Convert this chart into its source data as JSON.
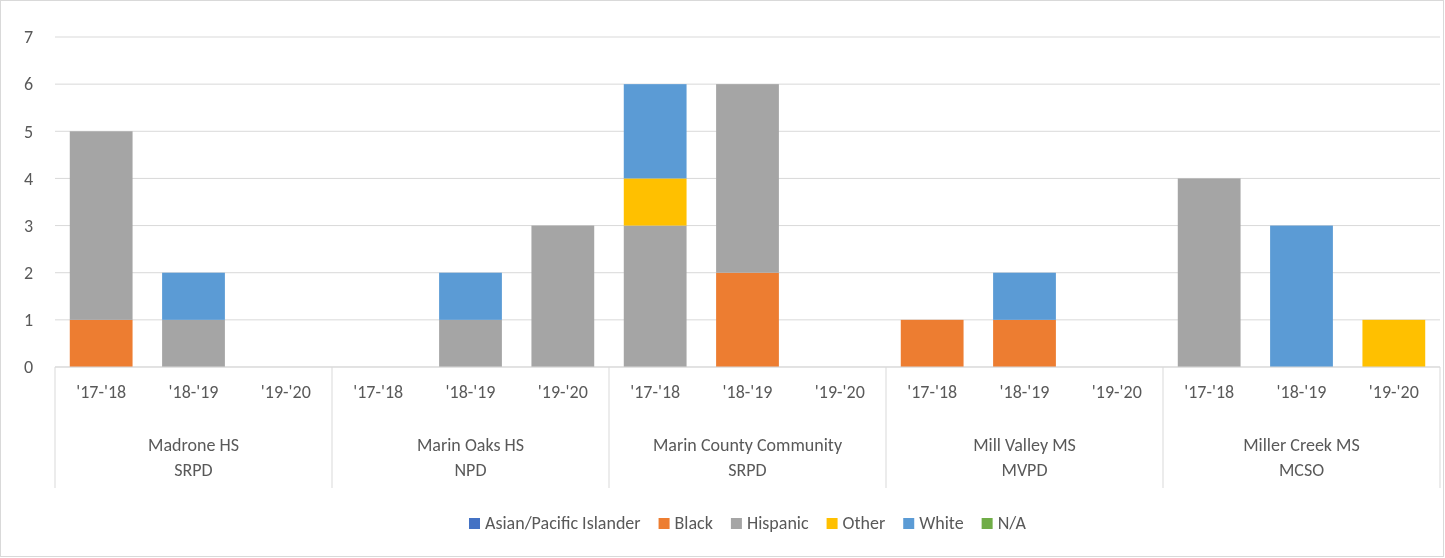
{
  "chart_data": {
    "type": "bar",
    "stacked": true,
    "categories": [
      "'17-'18",
      "'18-'19",
      "'19-'20",
      "'17-'18",
      "'18-'19",
      "'19-'20",
      "'17-'18",
      "'18-'19",
      "'19-'20",
      "'17-'18",
      "'18-'19",
      "'19-'20",
      "'17-'18",
      "'18-'19",
      "'19-'20"
    ],
    "series": [
      {
        "name": "Asian/Pacific Islander",
        "color": "#4472c4",
        "values": [
          0,
          0,
          0,
          0,
          0,
          0,
          0,
          0,
          0,
          0,
          0,
          0,
          0,
          0,
          0
        ]
      },
      {
        "name": "Black",
        "color": "#ed7d31",
        "values": [
          1,
          0,
          0,
          0,
          0,
          0,
          0,
          2,
          0,
          1,
          1,
          0,
          0,
          0,
          0
        ]
      },
      {
        "name": "Hispanic",
        "color": "#a5a5a5",
        "values": [
          4,
          1,
          0,
          0,
          1,
          3,
          3,
          4,
          0,
          0,
          0,
          0,
          4,
          0,
          0
        ]
      },
      {
        "name": "Other",
        "color": "#ffc000",
        "values": [
          0,
          0,
          0,
          0,
          0,
          0,
          1,
          0,
          0,
          0,
          0,
          0,
          0,
          0,
          1
        ]
      },
      {
        "name": "White",
        "color": "#5b9bd5",
        "values": [
          0,
          1,
          0,
          0,
          1,
          0,
          2,
          0,
          0,
          0,
          1,
          0,
          0,
          3,
          0
        ]
      },
      {
        "name": "N/A",
        "color": "#70ad47",
        "values": [
          0,
          0,
          0,
          0,
          0,
          0,
          0,
          0,
          0,
          0,
          0,
          0,
          0,
          0,
          0
        ]
      }
    ],
    "annotations": [
      "Madrone HS\nSRPD",
      "Marin Oaks HS\nNPD",
      "Marin County Community\nSRPD",
      "Mill Valley MS\nMVPD",
      "Miller Creek MS\nMCSO"
    ],
    "ylim": [
      0,
      7
    ],
    "yticks": [
      0,
      1,
      2,
      3,
      4,
      5,
      6,
      7
    ],
    "grid": "y",
    "legend": "bottom"
  }
}
